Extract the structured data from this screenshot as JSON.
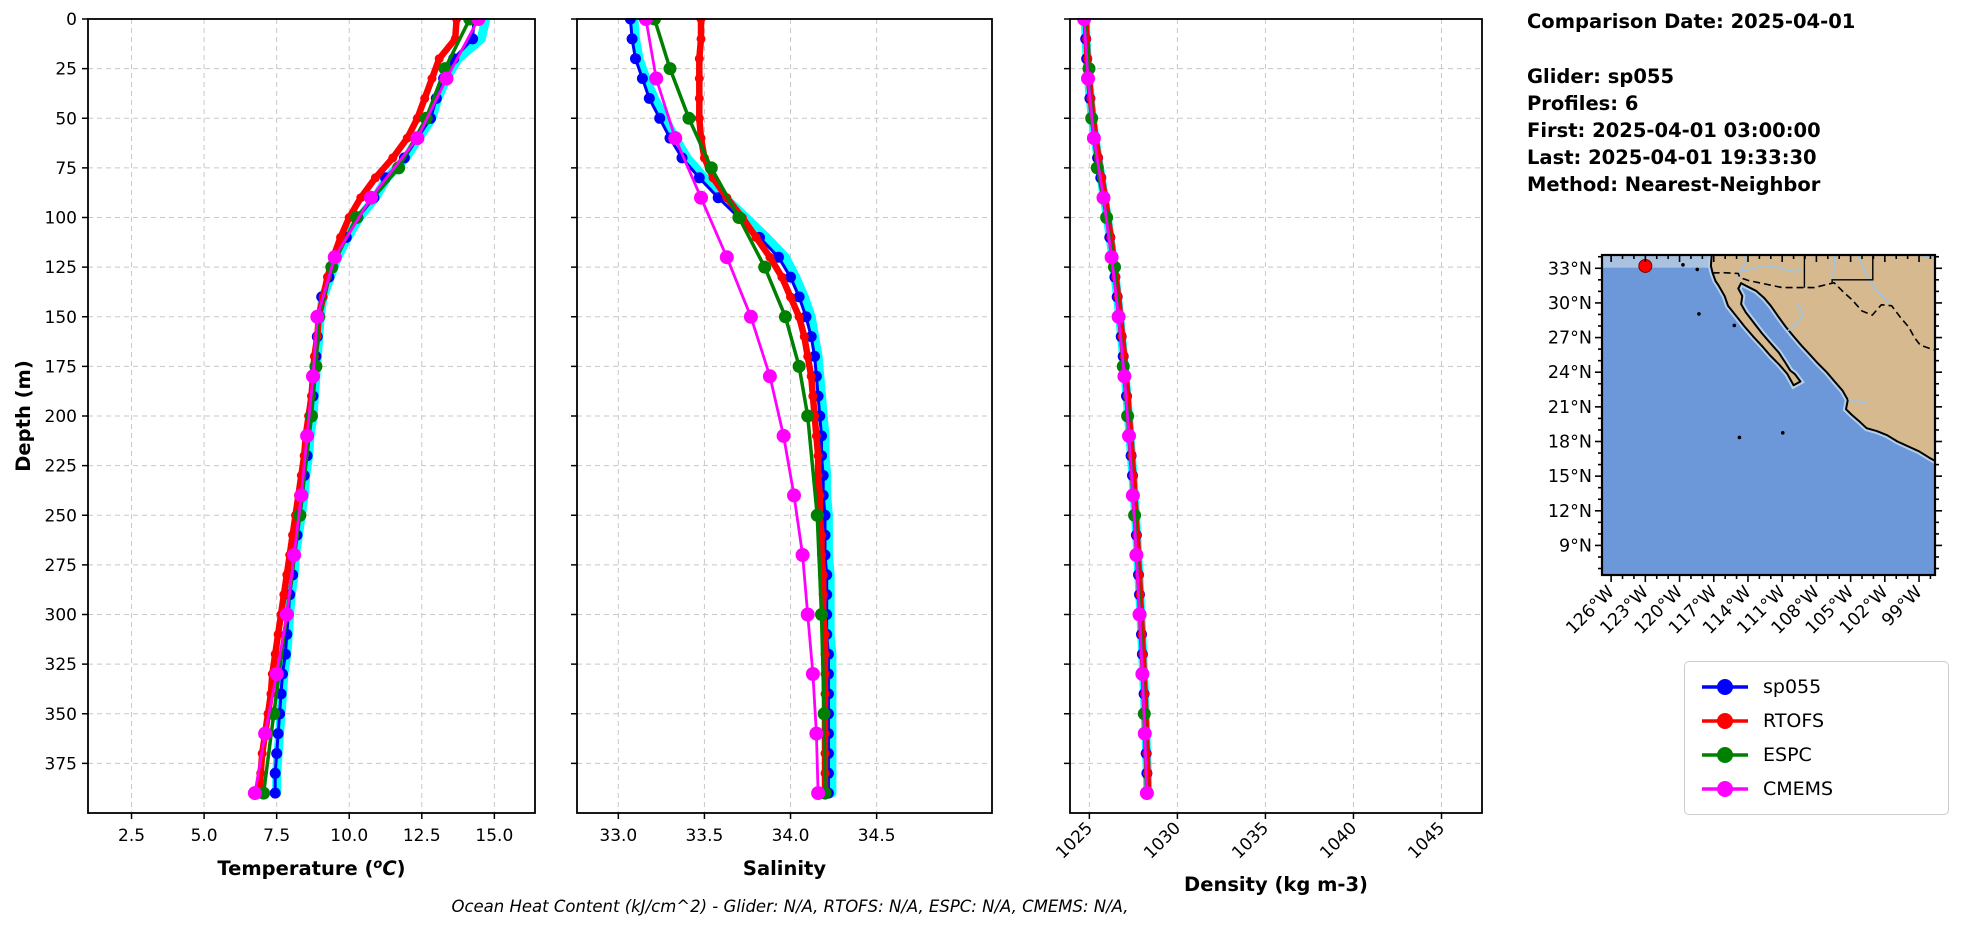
{
  "info_panel": {
    "comparison_date": "Comparison Date: 2025-04-01",
    "glider": "Glider: sp055",
    "profiles": "Profiles: 6",
    "first": "First: 2025-04-01 03:00:00",
    "last": "Last: 2025-04-01 19:33:30",
    "method": "Method: Nearest-Neighbor"
  },
  "caption": "Ocean Heat Content (kJ/cm^2) - Glider: N/A,  RTOFS: N/A,  ESPC: N/A,  CMEMS: N/A,",
  "legend": {
    "items": [
      {
        "label": "sp055",
        "color": "#0000FF"
      },
      {
        "label": "RTOFS",
        "color": "#FF0000"
      },
      {
        "label": "ESPC",
        "color": "#008000"
      },
      {
        "label": "CMEMS",
        "color": "#FF00FF"
      }
    ]
  },
  "colors": {
    "glider_raw": "#00FFFF",
    "sp055": "#0000FF",
    "rtofs": "#FF0000",
    "espc": "#008000",
    "cmems": "#FF00FF",
    "grid": "#c8c8c8",
    "map_ocean": "#6c98da",
    "map_land": "#d6b98e",
    "map_shallow": "#b3d0ec",
    "map_strip": "#a8c2e0",
    "map_marker": "#FF0000"
  },
  "depth_grids": {
    "standard": [
      0,
      10,
      20,
      30,
      40,
      50,
      60,
      70,
      80,
      90,
      100,
      110,
      120,
      130,
      140,
      150,
      160,
      170,
      180,
      190,
      200,
      210,
      220,
      230,
      240,
      250,
      260,
      270,
      280,
      290,
      300,
      310,
      320,
      330,
      340,
      350,
      360,
      370,
      380,
      390
    ],
    "espc": [
      0,
      25,
      50,
      75,
      100,
      125,
      150,
      175,
      200,
      250,
      300,
      350,
      390
    ],
    "cmems": [
      0,
      30,
      60,
      90,
      120,
      150,
      180,
      210,
      240,
      270,
      300,
      330,
      360,
      390
    ]
  },
  "map": {
    "lat_ticks": {
      "values": [
        33,
        30,
        27,
        24,
        21,
        18,
        15,
        12,
        9
      ],
      "labels": [
        "33°N",
        "30°N",
        "27°N",
        "24°N",
        "21°N",
        "18°N",
        "15°N",
        "12°N",
        "9°N"
      ]
    },
    "lon_ticks": {
      "values": [
        -126,
        -123,
        -120,
        -117,
        -114,
        -111,
        -108,
        -105,
        -102,
        -99
      ],
      "labels": [
        "126°W",
        "123°W",
        "120°W",
        "117°W",
        "114°W",
        "111°W",
        "108°W",
        "105°W",
        "102°W",
        "99°W"
      ]
    },
    "marker": {
      "lat": 33.2,
      "lon": -123.0
    }
  },
  "chart_data": [
    {
      "id": "temperature",
      "type": "line",
      "xlabel": "Temperature (°C)",
      "ylabel": "Depth (m)",
      "xlim": [
        1.0,
        16.4
      ],
      "ylim": [
        0,
        400
      ],
      "grid": true,
      "show_ytick_labels": true,
      "xtick_rotation": 0,
      "xticks": {
        "values": [
          2.5,
          5.0,
          7.5,
          10.0,
          12.5,
          15.0
        ],
        "labels": [
          "2.5",
          "5.0",
          "7.5",
          "10.0",
          "12.5",
          "15.0"
        ]
      },
      "yticks": {
        "values": [
          0,
          25,
          50,
          75,
          100,
          125,
          150,
          175,
          200,
          225,
          250,
          275,
          300,
          325,
          350,
          375
        ],
        "labels": [
          "0",
          "25",
          "50",
          "75",
          "100",
          "125",
          "150",
          "175",
          "200",
          "225",
          "250",
          "275",
          "300",
          "325",
          "350",
          "375"
        ]
      },
      "series": [
        {
          "name": "glider-raw",
          "color": "#00FFFF",
          "line_width": 9,
          "marker_radius": 0,
          "depth_grid": "standard",
          "values": [
            14.7,
            14.55,
            13.75,
            13.35,
            13.05,
            12.85,
            12.4,
            11.95,
            11.3,
            10.9,
            10.35,
            9.95,
            9.6,
            9.35,
            9.1,
            9.0,
            8.95,
            8.9,
            8.85,
            8.8,
            8.75,
            8.65,
            8.6,
            8.5,
            8.45,
            8.35,
            8.25,
            8.15,
            8.1,
            8.0,
            7.95,
            7.9,
            7.85,
            7.75,
            7.7,
            7.65,
            7.6,
            7.55,
            7.5,
            7.5
          ]
        },
        {
          "name": "sp055",
          "color": "#0000FF",
          "line_width": 3,
          "marker_radius": 5.5,
          "depth_grid": "standard",
          "values": [
            14.3,
            14.25,
            13.6,
            13.25,
            13.0,
            12.8,
            12.35,
            11.9,
            11.25,
            10.85,
            10.3,
            9.9,
            9.55,
            9.3,
            9.05,
            8.95,
            8.9,
            8.85,
            8.8,
            8.75,
            8.7,
            8.6,
            8.55,
            8.45,
            8.4,
            8.3,
            8.2,
            8.1,
            8.05,
            7.95,
            7.9,
            7.85,
            7.8,
            7.7,
            7.65,
            7.6,
            7.55,
            7.5,
            7.45,
            7.45
          ]
        },
        {
          "name": "RTOFS",
          "color": "#FF0000",
          "line_width": 6.5,
          "marker_radius": 4.5,
          "depth_grid": "standard",
          "values": [
            13.7,
            13.65,
            13.1,
            12.85,
            12.6,
            12.35,
            12.0,
            11.5,
            10.9,
            10.4,
            10.0,
            9.7,
            9.45,
            9.25,
            9.1,
            8.95,
            8.9,
            8.8,
            8.75,
            8.7,
            8.6,
            8.5,
            8.45,
            8.35,
            8.25,
            8.15,
            8.05,
            7.95,
            7.85,
            7.75,
            7.65,
            7.55,
            7.45,
            7.35,
            7.3,
            7.2,
            7.1,
            7.0,
            6.95,
            6.9
          ]
        },
        {
          "name": "ESPC",
          "color": "#008000",
          "line_width": 3.5,
          "marker_radius": 6.5,
          "depth_grid": "espc",
          "values": [
            14.15,
            13.3,
            12.65,
            11.7,
            10.25,
            9.4,
            8.95,
            8.85,
            8.7,
            8.3,
            7.85,
            7.4,
            7.05
          ]
        },
        {
          "name": "CMEMS",
          "color": "#FF00FF",
          "line_width": 2.8,
          "marker_radius": 7,
          "depth_grid": "cmems",
          "values": [
            14.45,
            13.35,
            12.35,
            10.75,
            9.5,
            8.9,
            8.75,
            8.55,
            8.35,
            8.1,
            7.85,
            7.5,
            7.1,
            6.75
          ]
        }
      ]
    },
    {
      "id": "salinity",
      "type": "line",
      "xlabel": "Salinity",
      "ylabel": "",
      "xlim": [
        32.76,
        35.17
      ],
      "ylim": [
        0,
        400
      ],
      "grid": true,
      "show_ytick_labels": false,
      "xtick_rotation": 0,
      "xticks": {
        "values": [
          33.0,
          33.5,
          34.0,
          34.5
        ],
        "labels": [
          "33.0",
          "33.5",
          "34.0",
          "34.5"
        ]
      },
      "yticks": {
        "values": [
          0,
          25,
          50,
          75,
          100,
          125,
          150,
          175,
          200,
          225,
          250,
          275,
          300,
          325,
          350,
          375
        ],
        "labels": [
          "0",
          "25",
          "50",
          "75",
          "100",
          "125",
          "150",
          "175",
          "200",
          "225",
          "250",
          "275",
          "300",
          "325",
          "350",
          "375"
        ]
      },
      "series": [
        {
          "name": "glider-raw",
          "color": "#00FFFF",
          "line_width": 9,
          "marker_radius": 0,
          "depth_grid": "standard",
          "values": [
            33.09,
            33.1,
            33.12,
            33.16,
            33.21,
            33.27,
            33.33,
            33.4,
            33.5,
            33.62,
            33.74,
            33.86,
            33.97,
            34.03,
            34.08,
            34.12,
            34.14,
            34.16,
            34.17,
            34.18,
            34.19,
            34.2,
            34.2,
            34.21,
            34.21,
            34.22,
            34.22,
            34.22,
            34.23,
            34.23,
            34.23,
            34.23,
            34.24,
            34.24,
            34.24,
            34.24,
            34.24,
            34.24,
            34.24,
            34.24
          ]
        },
        {
          "name": "sp055",
          "color": "#0000FF",
          "line_width": 3,
          "marker_radius": 5.5,
          "depth_grid": "standard",
          "values": [
            33.07,
            33.08,
            33.1,
            33.14,
            33.18,
            33.24,
            33.3,
            33.37,
            33.47,
            33.58,
            33.7,
            33.82,
            33.93,
            34.0,
            34.05,
            34.09,
            34.12,
            34.14,
            34.15,
            34.16,
            34.17,
            34.18,
            34.18,
            34.19,
            34.19,
            34.2,
            34.2,
            34.2,
            34.21,
            34.21,
            34.21,
            34.21,
            34.22,
            34.22,
            34.22,
            34.22,
            34.22,
            34.22,
            34.22,
            34.22
          ]
        },
        {
          "name": "RTOFS",
          "color": "#FF0000",
          "line_width": 6.5,
          "marker_radius": 4.5,
          "depth_grid": "standard",
          "values": [
            33.48,
            33.48,
            33.47,
            33.47,
            33.47,
            33.47,
            33.48,
            33.5,
            33.55,
            33.63,
            33.72,
            33.8,
            33.88,
            33.95,
            34.0,
            34.05,
            34.08,
            34.1,
            34.12,
            34.13,
            34.14,
            34.15,
            34.16,
            34.16,
            34.17,
            34.17,
            34.18,
            34.18,
            34.19,
            34.19,
            34.19,
            34.2,
            34.2,
            34.2,
            34.2,
            34.2,
            34.2,
            34.2,
            34.2,
            34.2
          ]
        },
        {
          "name": "ESPC",
          "color": "#008000",
          "line_width": 3.5,
          "marker_radius": 6.5,
          "depth_grid": "espc",
          "values": [
            33.21,
            33.3,
            33.41,
            33.54,
            33.7,
            33.85,
            33.97,
            34.05,
            34.1,
            34.155,
            34.18,
            34.195,
            34.2
          ]
        },
        {
          "name": "CMEMS",
          "color": "#FF00FF",
          "line_width": 2.8,
          "marker_radius": 7,
          "depth_grid": "cmems",
          "values": [
            33.16,
            33.22,
            33.33,
            33.48,
            33.63,
            33.77,
            33.88,
            33.96,
            34.02,
            34.07,
            34.1,
            34.13,
            34.15,
            34.16
          ]
        }
      ]
    },
    {
      "id": "density",
      "type": "line",
      "xlabel": "Density (kg m-3)",
      "ylabel": "",
      "xlim": [
        1023.9,
        1047.3
      ],
      "ylim": [
        0,
        400
      ],
      "grid": true,
      "show_ytick_labels": false,
      "xtick_rotation": 45,
      "xticks": {
        "values": [
          1025,
          1030,
          1035,
          1040,
          1045
        ],
        "labels": [
          "1025",
          "1030",
          "1035",
          "1040",
          "1045"
        ]
      },
      "yticks": {
        "values": [
          0,
          25,
          50,
          75,
          100,
          125,
          150,
          175,
          200,
          225,
          250,
          275,
          300,
          325,
          350,
          375
        ],
        "labels": [
          "0",
          "25",
          "50",
          "75",
          "100",
          "125",
          "150",
          "175",
          "200",
          "225",
          "250",
          "275",
          "300",
          "325",
          "350",
          "375"
        ]
      },
      "series": [
        {
          "name": "glider-raw",
          "color": "#00FFFF",
          "line_width": 9,
          "marker_radius": 0,
          "depth_grid": "standard",
          "values": [
            1024.77,
            1024.81,
            1024.87,
            1024.95,
            1025.05,
            1025.17,
            1025.32,
            1025.49,
            1025.67,
            1025.85,
            1026.02,
            1026.18,
            1026.33,
            1026.47,
            1026.6,
            1026.72,
            1026.83,
            1026.94,
            1027.04,
            1027.13,
            1027.22,
            1027.31,
            1027.39,
            1027.47,
            1027.55,
            1027.62,
            1027.69,
            1027.75,
            1027.81,
            1027.87,
            1027.92,
            1027.98,
            1028.03,
            1028.08,
            1028.13,
            1028.17,
            1028.21,
            1028.25,
            1028.29,
            1028.32
          ]
        },
        {
          "name": "sp055",
          "color": "#0000FF",
          "line_width": 3,
          "marker_radius": 5.5,
          "depth_grid": "standard",
          "values": [
            1024.75,
            1024.79,
            1024.85,
            1024.93,
            1025.03,
            1025.15,
            1025.3,
            1025.47,
            1025.65,
            1025.83,
            1026.0,
            1026.16,
            1026.31,
            1026.45,
            1026.58,
            1026.7,
            1026.81,
            1026.92,
            1027.02,
            1027.11,
            1027.2,
            1027.29,
            1027.37,
            1027.45,
            1027.53,
            1027.6,
            1027.67,
            1027.73,
            1027.79,
            1027.85,
            1027.9,
            1027.96,
            1028.01,
            1028.06,
            1028.11,
            1028.15,
            1028.19,
            1028.23,
            1028.27,
            1028.3
          ]
        },
        {
          "name": "RTOFS",
          "color": "#FF0000",
          "line_width": 6.5,
          "marker_radius": 4.5,
          "depth_grid": "standard",
          "values": [
            1024.8,
            1024.84,
            1024.9,
            1024.98,
            1025.08,
            1025.2,
            1025.35,
            1025.52,
            1025.7,
            1025.88,
            1026.05,
            1026.21,
            1026.36,
            1026.5,
            1026.63,
            1026.75,
            1026.86,
            1026.97,
            1027.07,
            1027.16,
            1027.25,
            1027.33,
            1027.41,
            1027.49,
            1027.56,
            1027.63,
            1027.7,
            1027.76,
            1027.82,
            1027.88,
            1027.93,
            1027.99,
            1028.04,
            1028.09,
            1028.14,
            1028.18,
            1028.22,
            1028.26,
            1028.3,
            1028.33
          ]
        },
        {
          "name": "ESPC",
          "color": "#008000",
          "line_width": 3.5,
          "marker_radius": 6.5,
          "depth_grid": "espc",
          "values": [
            1024.72,
            1024.98,
            1025.13,
            1025.45,
            1025.98,
            1026.43,
            1026.68,
            1026.93,
            1027.17,
            1027.57,
            1027.88,
            1028.12,
            1028.27
          ]
        },
        {
          "name": "CMEMS",
          "color": "#FF00FF",
          "line_width": 2.8,
          "marker_radius": 7,
          "depth_grid": "cmems",
          "values": [
            1024.7,
            1024.92,
            1025.26,
            1025.8,
            1026.26,
            1026.66,
            1026.99,
            1027.25,
            1027.47,
            1027.67,
            1027.85,
            1028.01,
            1028.15,
            1028.27
          ]
        }
      ]
    }
  ]
}
